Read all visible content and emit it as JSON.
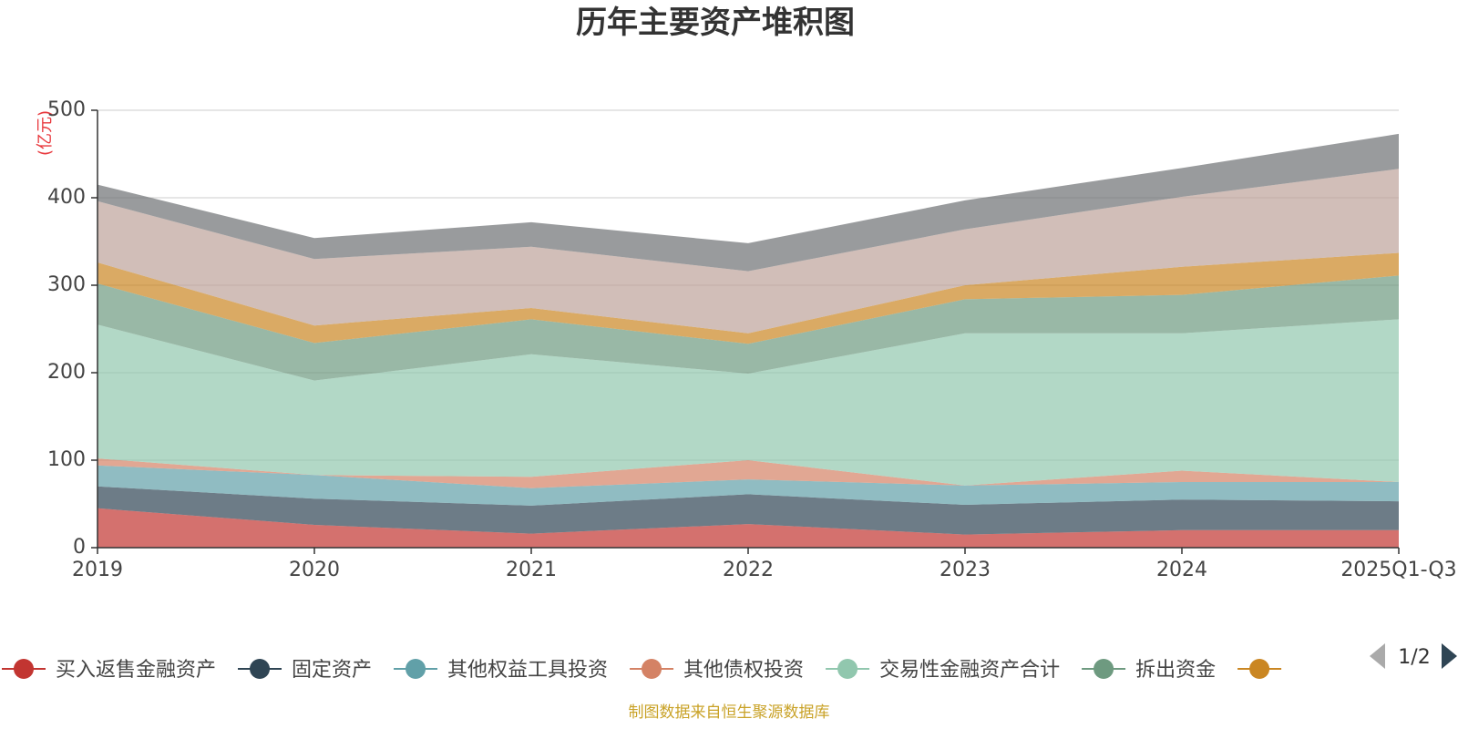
{
  "chart_data": {
    "type": "area",
    "stacked": true,
    "title": "历年主要资产堆积图",
    "unit_label": "(亿元)",
    "categories": [
      "2019",
      "2020",
      "2021",
      "2022",
      "2023",
      "2024",
      "2025Q1-Q3"
    ],
    "ylim": [
      0,
      500
    ],
    "yticks": [
      0,
      100,
      200,
      300,
      400,
      500
    ],
    "grid": true,
    "series": [
      {
        "name": "买入返售金融资产",
        "color": "#c23531",
        "values": [
          45,
          26,
          16,
          27,
          15,
          20,
          20
        ]
      },
      {
        "name": "固定资产",
        "color": "#2f4554",
        "values": [
          25,
          30,
          32,
          34,
          34,
          35,
          33
        ]
      },
      {
        "name": "其他权益工具投资",
        "color": "#61a0a8",
        "values": [
          24,
          27,
          20,
          17,
          22,
          20,
          22
        ]
      },
      {
        "name": "其他债权投资",
        "color": "#d48265",
        "values": [
          8,
          0,
          13,
          22,
          0,
          13,
          0
        ]
      },
      {
        "name": "交易性金融资产合计",
        "color": "#91c7ae",
        "values": [
          153,
          108,
          140,
          99,
          174,
          157,
          186
        ]
      },
      {
        "name": "拆出资金",
        "color": "#6e9a80",
        "values": [
          47,
          43,
          40,
          34,
          39,
          44,
          50
        ]
      },
      {
        "name": "",
        "color": "#ca8622",
        "values": [
          24,
          20,
          13,
          12,
          16,
          32,
          26
        ]
      },
      {
        "name": "",
        "color": "#bda29a",
        "values": [
          70,
          76,
          70,
          71,
          64,
          80,
          96
        ]
      },
      {
        "name": "",
        "color": "#6e7074",
        "values": [
          19,
          24,
          28,
          32,
          33,
          33,
          40
        ]
      }
    ]
  },
  "legend": {
    "page": "1/2"
  },
  "footer": {
    "source": "制图数据来自恒生聚源数据库"
  }
}
